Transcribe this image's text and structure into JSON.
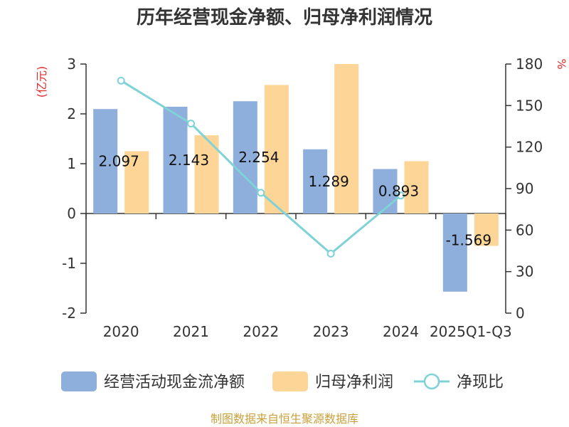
{
  "chart_data": {
    "type": "bar",
    "title": "历年经营现金净额、归母净利润情况",
    "categories": [
      "2020",
      "2021",
      "2022",
      "2023",
      "2024",
      "2025Q1-Q3"
    ],
    "series": [
      {
        "name": "经营活动现金流净额",
        "type": "bar",
        "axis": "left",
        "values": [
          2.097,
          2.143,
          2.254,
          1.289,
          0.893,
          -1.569
        ],
        "labels": [
          "2.097",
          "2.143",
          "2.254",
          "1.289",
          "0.893",
          "-1.569"
        ]
      },
      {
        "name": "归母净利润",
        "type": "bar",
        "axis": "left",
        "values": [
          1.25,
          1.57,
          2.58,
          3.0,
          1.05,
          -0.65
        ]
      },
      {
        "name": "净现比",
        "type": "line",
        "axis": "right",
        "values": [
          168,
          137,
          87,
          43,
          85,
          null
        ]
      }
    ],
    "left_axis": {
      "label": "(亿元)",
      "ylim": [
        -2,
        3
      ],
      "ticks": [
        "3",
        "2",
        "1",
        "0",
        "-1",
        "-2"
      ]
    },
    "right_axis": {
      "label": "%",
      "ylim": [
        0,
        180
      ],
      "ticks": [
        "180",
        "150",
        "120",
        "90",
        "60",
        "30",
        "0"
      ]
    }
  },
  "colors": {
    "bar1": "#8eaedb",
    "bar2": "#fdd697",
    "line": "#7fd2d6",
    "axis": "#333333",
    "unit": "#e0292a",
    "source": "#c9a13c",
    "grid": "#ffffff"
  },
  "source": "制图数据来自恒生聚源数据库"
}
